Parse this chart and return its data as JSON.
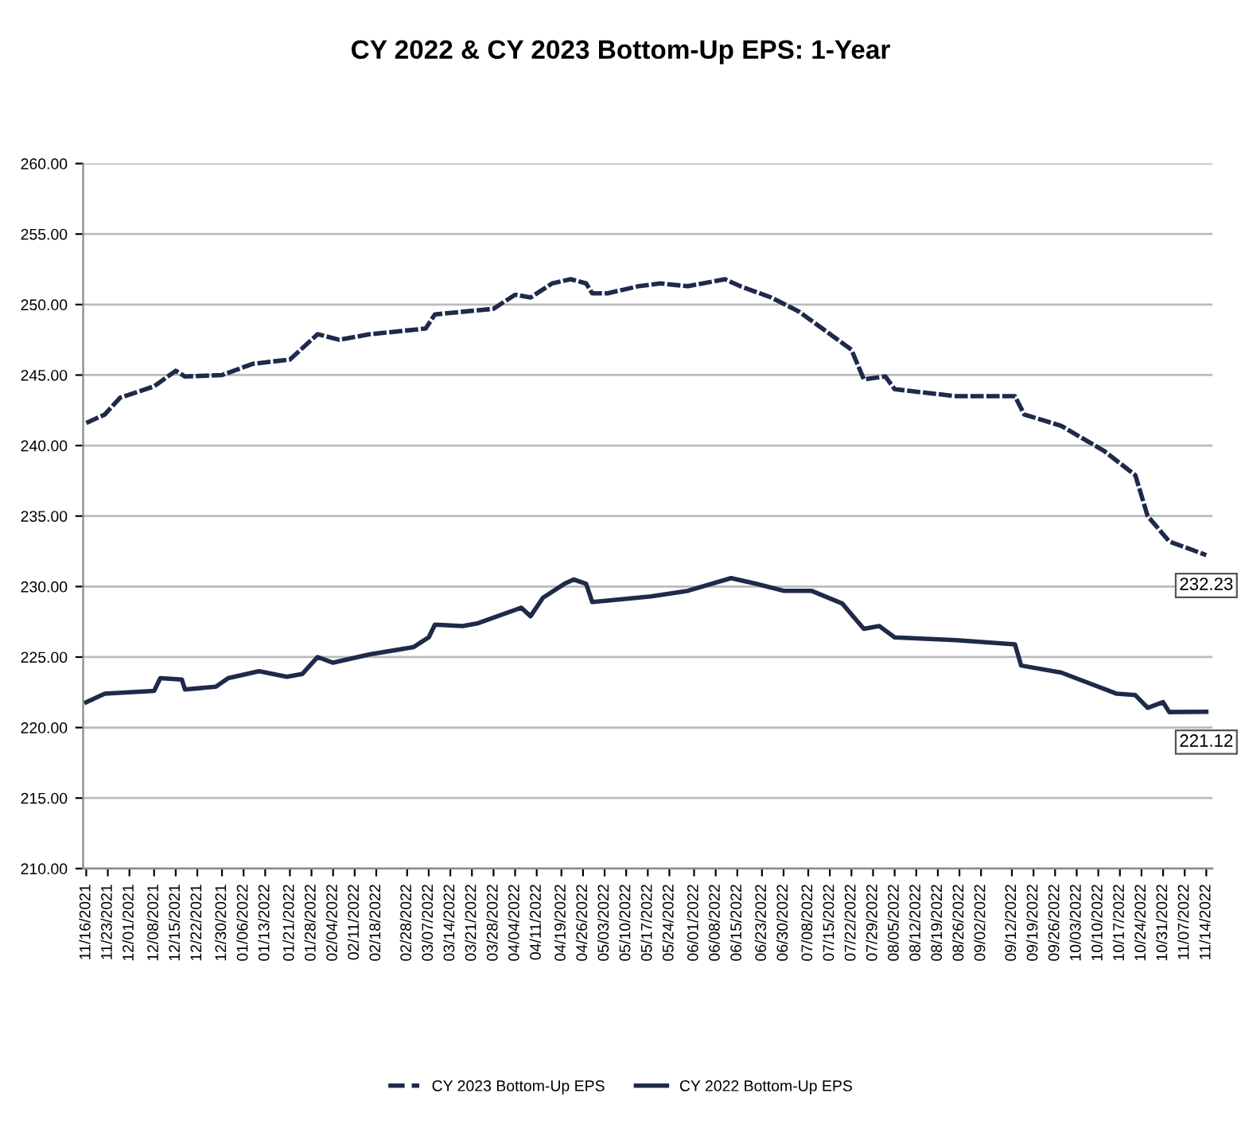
{
  "chart_data": {
    "type": "line",
    "title": "CY 2022 & CY 2023 Bottom-Up EPS: 1-Year",
    "series": [
      {
        "name": "CY 2023 Bottom-Up EPS",
        "color": "#1f2a4a",
        "line_style": "dashed",
        "x": [
          "2021-11-16",
          "2021-11-22",
          "2021-11-27",
          "2021-12-08",
          "2021-12-15",
          "2021-12-18",
          "2021-12-30",
          "2022-01-09",
          "2022-01-21",
          "2022-01-26",
          "2022-01-30",
          "2022-02-06",
          "2022-02-16",
          "2022-03-06",
          "2022-03-09",
          "2022-03-28",
          "2022-04-04",
          "2022-04-09",
          "2022-04-16",
          "2022-04-22",
          "2022-04-27",
          "2022-04-29",
          "2022-05-04",
          "2022-05-14",
          "2022-05-21",
          "2022-05-30",
          "2022-06-11",
          "2022-06-16",
          "2022-06-26",
          "2022-07-05",
          "2022-07-22",
          "2022-07-26",
          "2022-08-02",
          "2022-08-05",
          "2022-08-25",
          "2022-09-13",
          "2022-09-16",
          "2022-09-28",
          "2022-10-12",
          "2022-10-22",
          "2022-10-26",
          "2022-11-02",
          "2022-11-14"
        ],
        "values": [
          241.6,
          242.2,
          243.4,
          244.2,
          245.3,
          244.9,
          245.0,
          245.8,
          246.1,
          247.1,
          247.9,
          247.5,
          247.9,
          248.3,
          249.3,
          249.7,
          250.7,
          250.5,
          251.5,
          251.8,
          251.5,
          250.8,
          250.8,
          251.3,
          251.5,
          251.3,
          251.8,
          251.3,
          250.5,
          249.5,
          246.8,
          244.7,
          244.9,
          244.0,
          243.5,
          243.5,
          242.2,
          241.4,
          239.6,
          237.9,
          235.0,
          233.2,
          232.23
        ],
        "value_labels": [
          null,
          null,
          null,
          null,
          null,
          null,
          null,
          null,
          null,
          null,
          null,
          null,
          null,
          null,
          null,
          null,
          null,
          null,
          null,
          null,
          null,
          null,
          null,
          null,
          null,
          null,
          null,
          null,
          null,
          null,
          null,
          null,
          null,
          null,
          null,
          null,
          null,
          null,
          null,
          null,
          null,
          null,
          "232.23"
        ]
      },
      {
        "name": "CY 2022 Bottom-Up EPS",
        "color": "#1f2a4a",
        "line_style": "solid",
        "x": [
          "2021-11-16",
          "2021-11-22",
          "2021-12-08",
          "2021-12-10",
          "2021-12-17",
          "2021-12-18",
          "2021-12-28",
          "2022-01-01",
          "2022-01-11",
          "2022-01-20",
          "2022-01-25",
          "2022-01-30",
          "2022-02-04",
          "2022-02-16",
          "2022-03-02",
          "2022-03-07",
          "2022-03-09",
          "2022-03-18",
          "2022-03-23",
          "2022-04-06",
          "2022-04-09",
          "2022-04-13",
          "2022-04-20",
          "2022-04-23",
          "2022-04-27",
          "2022-04-29",
          "2022-05-04",
          "2022-05-18",
          "2022-05-30",
          "2022-06-13",
          "2022-06-21",
          "2022-06-30",
          "2022-07-09",
          "2022-07-19",
          "2022-07-26",
          "2022-07-31",
          "2022-08-05",
          "2022-08-25",
          "2022-09-13",
          "2022-09-15",
          "2022-09-28",
          "2022-10-16",
          "2022-10-22",
          "2022-10-26",
          "2022-10-31",
          "2022-11-02",
          "2022-11-14"
        ],
        "values": [
          221.8,
          222.4,
          222.6,
          223.5,
          223.4,
          222.7,
          222.9,
          223.5,
          224.0,
          223.6,
          223.8,
          225.0,
          224.6,
          225.2,
          225.7,
          226.4,
          227.3,
          227.2,
          227.4,
          228.5,
          227.9,
          229.2,
          230.2,
          230.5,
          230.2,
          228.9,
          229.0,
          229.3,
          229.7,
          230.6,
          230.2,
          229.7,
          229.7,
          228.8,
          227.0,
          227.2,
          226.4,
          226.2,
          225.9,
          224.4,
          223.9,
          222.4,
          222.3,
          221.4,
          221.8,
          221.1,
          221.12
        ],
        "value_labels": [
          null,
          null,
          null,
          null,
          null,
          null,
          null,
          null,
          null,
          null,
          null,
          null,
          null,
          null,
          null,
          null,
          null,
          null,
          null,
          null,
          null,
          null,
          null,
          null,
          null,
          null,
          null,
          null,
          null,
          null,
          null,
          null,
          null,
          null,
          null,
          null,
          null,
          null,
          null,
          null,
          null,
          null,
          null,
          null,
          null,
          null,
          "221.12"
        ]
      }
    ],
    "xlim": [
      "2021-11-15",
      "2022-11-16"
    ],
    "xticks": [
      {
        "value": "2021-11-16",
        "label": "11/16/2021"
      },
      {
        "value": "2021-11-23",
        "label": "11/23/2021"
      },
      {
        "value": "2021-11-30",
        "label": "12/01/2021"
      },
      {
        "value": "2021-12-08",
        "label": "12/08/2021"
      },
      {
        "value": "2021-12-15",
        "label": "12/15/2021"
      },
      {
        "value": "2021-12-22",
        "label": "12/22/2021"
      },
      {
        "value": "2021-12-30",
        "label": "12/30/2021"
      },
      {
        "value": "2022-01-06",
        "label": "01/06/2022"
      },
      {
        "value": "2022-01-13",
        "label": "01/13/2022"
      },
      {
        "value": "2022-01-21",
        "label": "01/21/2022"
      },
      {
        "value": "2022-01-28",
        "label": "01/28/2022"
      },
      {
        "value": "2022-02-04",
        "label": "02/04/2022"
      },
      {
        "value": "2022-02-11",
        "label": "02/11/2022"
      },
      {
        "value": "2022-02-18",
        "label": "02/18/2022"
      },
      {
        "value": "2022-02-28",
        "label": "02/28/2022"
      },
      {
        "value": "2022-03-07",
        "label": "03/07/2022"
      },
      {
        "value": "2022-03-14",
        "label": "03/14/2022"
      },
      {
        "value": "2022-03-21",
        "label": "03/21/2022"
      },
      {
        "value": "2022-03-28",
        "label": "03/28/2022"
      },
      {
        "value": "2022-04-04",
        "label": "04/04/2022"
      },
      {
        "value": "2022-04-11",
        "label": "04/11/2022"
      },
      {
        "value": "2022-04-19",
        "label": "04/19/2022"
      },
      {
        "value": "2022-04-26",
        "label": "04/26/2022"
      },
      {
        "value": "2022-05-03",
        "label": "05/03/2022"
      },
      {
        "value": "2022-05-10",
        "label": "05/10/2022"
      },
      {
        "value": "2022-05-17",
        "label": "05/17/2022"
      },
      {
        "value": "2022-05-24",
        "label": "05/24/2022"
      },
      {
        "value": "2022-06-01",
        "label": "06/01/2022"
      },
      {
        "value": "2022-06-08",
        "label": "06/08/2022"
      },
      {
        "value": "2022-06-15",
        "label": "06/15/2022"
      },
      {
        "value": "2022-06-23",
        "label": "06/23/2022"
      },
      {
        "value": "2022-06-30",
        "label": "06/30/2022"
      },
      {
        "value": "2022-07-08",
        "label": "07/08/2022"
      },
      {
        "value": "2022-07-15",
        "label": "07/15/2022"
      },
      {
        "value": "2022-07-22",
        "label": "07/22/2022"
      },
      {
        "value": "2022-07-29",
        "label": "07/29/2022"
      },
      {
        "value": "2022-08-05",
        "label": "08/05/2022"
      },
      {
        "value": "2022-08-12",
        "label": "08/12/2022"
      },
      {
        "value": "2022-08-19",
        "label": "08/19/2022"
      },
      {
        "value": "2022-08-26",
        "label": "08/26/2022"
      },
      {
        "value": "2022-09-02",
        "label": "09/02/2022"
      },
      {
        "value": "2022-09-12",
        "label": "09/12/2022"
      },
      {
        "value": "2022-09-19",
        "label": "09/19/2022"
      },
      {
        "value": "2022-09-26",
        "label": "09/26/2022"
      },
      {
        "value": "2022-10-03",
        "label": "10/03/2022"
      },
      {
        "value": "2022-10-10",
        "label": "10/10/2022"
      },
      {
        "value": "2022-10-17",
        "label": "10/17/2022"
      },
      {
        "value": "2022-10-24",
        "label": "10/24/2022"
      },
      {
        "value": "2022-10-31",
        "label": "10/31/2022"
      },
      {
        "value": "2022-11-07",
        "label": "11/07/2022"
      },
      {
        "value": "2022-11-14",
        "label": "11/14/2022"
      }
    ],
    "ylim": [
      210,
      260
    ],
    "yticks": [
      {
        "value": 210,
        "label": "210.00"
      },
      {
        "value": 215,
        "label": "215.00"
      },
      {
        "value": 220,
        "label": "220.00"
      },
      {
        "value": 225,
        "label": "225.00"
      },
      {
        "value": 230,
        "label": "230.00"
      },
      {
        "value": 235,
        "label": "235.00"
      },
      {
        "value": 240,
        "label": "240.00"
      },
      {
        "value": 245,
        "label": "245.00"
      },
      {
        "value": 250,
        "label": "250.00"
      },
      {
        "value": 255,
        "label": "255.00"
      },
      {
        "value": 260,
        "label": "260.00"
      }
    ],
    "grid": "y",
    "legend": "bottom",
    "marker": "none"
  }
}
